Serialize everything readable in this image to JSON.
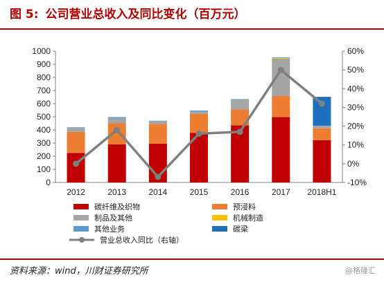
{
  "header": {
    "figure_label": "图 5:",
    "title": "公司营业总收入及同比变化（百万元）"
  },
  "source": "资料来源：wind，川财证券研究所",
  "watermark": "@格隆汇",
  "chart_data": {
    "type": "bar",
    "stacked": true,
    "categories": [
      "2012",
      "2013",
      "2014",
      "2015",
      "2016",
      "2017",
      "2018H1"
    ],
    "y_left": {
      "min": 0,
      "max": 1000,
      "step": 100,
      "ticks": [
        "0",
        "100",
        "200",
        "300",
        "400",
        "500",
        "600",
        "700",
        "800",
        "900",
        "1000"
      ]
    },
    "y_right": {
      "min": -10,
      "max": 60,
      "step": 10,
      "ticks": [
        "-10%",
        "0%",
        "10%",
        "20%",
        "30%",
        "40%",
        "50%",
        "60%"
      ]
    },
    "series": [
      {
        "name": "碳纤维及织物",
        "color": "#c00000",
        "values": [
          225,
          290,
          295,
          378,
          435,
          498,
          322
        ]
      },
      {
        "name": "预浸料",
        "color": "#ed7d31",
        "values": [
          160,
          160,
          150,
          145,
          120,
          160,
          90
        ]
      },
      {
        "name": "制品及其他",
        "color": "#a5a5a5",
        "values": [
          30,
          40,
          20,
          15,
          75,
          285,
          20
        ]
      },
      {
        "name": "机械制造",
        "color": "#ffc000",
        "values": [
          0,
          0,
          0,
          0,
          0,
          5,
          0
        ]
      },
      {
        "name": "其他业务",
        "color": "#5b9bd5",
        "values": [
          5,
          8,
          5,
          10,
          5,
          5,
          0
        ]
      },
      {
        "name": "碳梁",
        "color": "#1f6fbf",
        "values": [
          0,
          0,
          0,
          0,
          0,
          0,
          220
        ]
      }
    ],
    "line": {
      "name": "营业总收入同比（右轴）",
      "color": "#7f7f7f",
      "axis": "right",
      "values": [
        0,
        18,
        -7,
        16,
        17,
        50,
        32
      ]
    },
    "legend": [
      {
        "label": "碳纤维及织物",
        "kind": "bar",
        "color": "#c00000"
      },
      {
        "label": "预浸料",
        "kind": "bar",
        "color": "#ed7d31"
      },
      {
        "label": "制品及其他",
        "kind": "bar",
        "color": "#a5a5a5"
      },
      {
        "label": "机械制造",
        "kind": "bar",
        "color": "#ffc000"
      },
      {
        "label": "其他业务",
        "kind": "bar",
        "color": "#5b9bd5"
      },
      {
        "label": "碳梁",
        "kind": "bar",
        "color": "#1f6fbf"
      },
      {
        "label": "营业总收入同比（右轴）",
        "kind": "line",
        "color": "#7f7f7f"
      }
    ],
    "legend_placement": "bottom",
    "grid": false
  }
}
